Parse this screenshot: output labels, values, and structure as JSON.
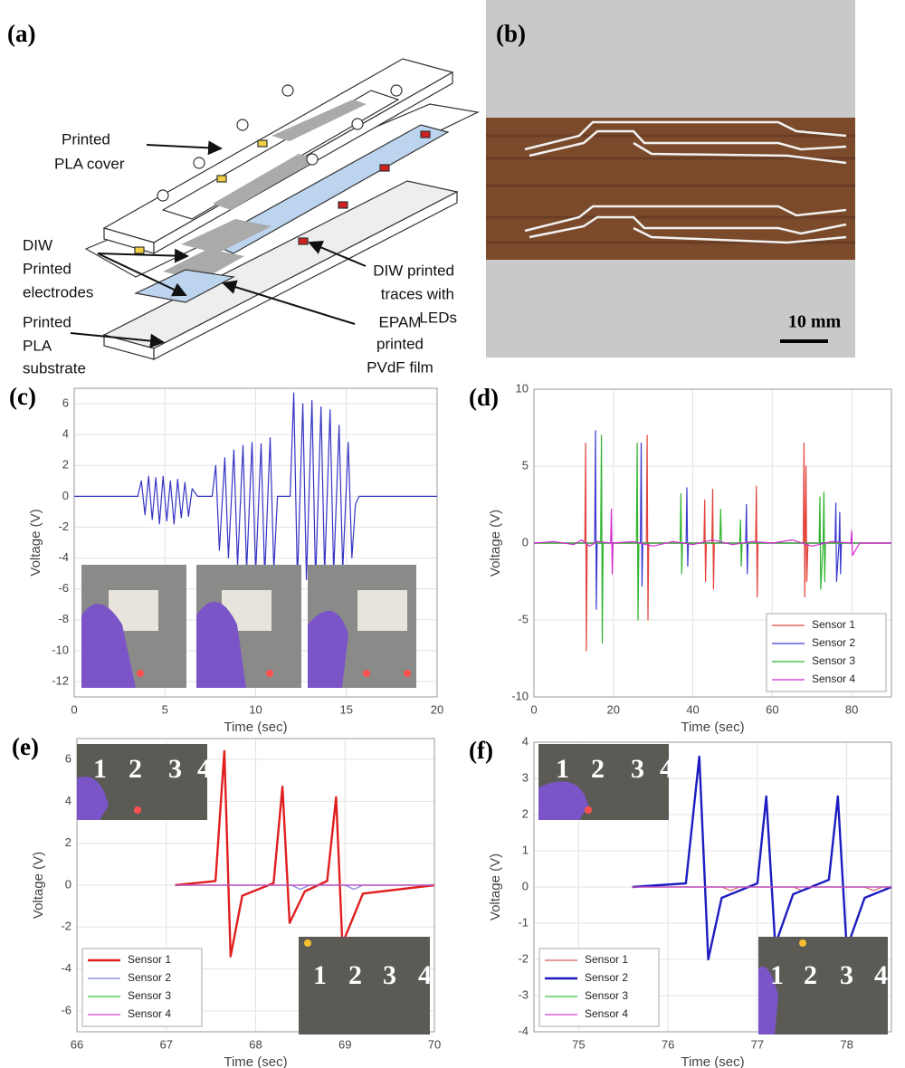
{
  "diagram": {
    "panel": "(a)",
    "labels": [
      {
        "lines": [
          "Printed",
          "PLA cover"
        ]
      },
      {
        "lines": [
          "DIW",
          "Printed",
          "electrodes"
        ]
      },
      {
        "lines": [
          "Printed",
          "PLA",
          "substrate"
        ]
      },
      {
        "lines": [
          "DIW printed",
          "traces with",
          "LEDs"
        ]
      },
      {
        "lines": [
          "EPAM",
          "printed",
          "PVdF film"
        ]
      }
    ]
  },
  "photo": {
    "panel": "(b)",
    "scale_bar": "10 mm"
  },
  "chart_data": [
    {
      "type": "line",
      "panel": "(c)",
      "xlabel": "Time (sec)",
      "ylabel": "Voltage (V)",
      "color": "#3434c4",
      "x": [
        0,
        3.5,
        3.7,
        3.9,
        4.1,
        4.3,
        4.5,
        4.7,
        4.9,
        5.1,
        5.3,
        5.5,
        5.7,
        5.9,
        6.1,
        6.3,
        6.5,
        6.8,
        7.6,
        7.8,
        8.0,
        8.3,
        8.5,
        8.8,
        9.0,
        9.3,
        9.5,
        9.8,
        10.0,
        10.3,
        10.5,
        10.8,
        11.0,
        11.2,
        11.9,
        12.1,
        12.3,
        12.6,
        12.8,
        13.1,
        13.3,
        13.6,
        13.8,
        14.1,
        14.3,
        14.6,
        14.8,
        15.1,
        15.3,
        15.5,
        15.7,
        20
      ],
      "values": [
        0,
        0,
        1.0,
        -1.2,
        1.3,
        -1.5,
        1.2,
        -1.8,
        1.3,
        -1.6,
        1.0,
        -1.8,
        1.1,
        -1.4,
        0.9,
        -1.3,
        0.5,
        0,
        0,
        2.0,
        -3.5,
        2.5,
        -4.0,
        3.0,
        -4.5,
        3.3,
        -4.8,
        3.5,
        -5.0,
        3.4,
        -5.2,
        3.8,
        -4.8,
        0,
        0,
        6.7,
        -5.5,
        6.0,
        -5.4,
        6.2,
        -5.5,
        5.8,
        -5.0,
        5.6,
        -5.0,
        4.6,
        -4.8,
        3.5,
        -4.0,
        -0.5,
        0,
        0
      ],
      "xlim": [
        0,
        20
      ],
      "xticks": [
        0,
        5,
        10,
        15,
        20
      ],
      "ylim": [
        -13,
        7
      ],
      "yticks": [
        -12,
        -10,
        -8,
        -6,
        -4,
        -2,
        0,
        2,
        4,
        6
      ],
      "grid": true
    },
    {
      "type": "line",
      "panel": "(d)",
      "xlabel": "Time (sec)",
      "ylabel": "Voltage (V)",
      "legend": "lower right",
      "series": [
        {
          "name": "Sensor 1",
          "color": "#e2443c",
          "x": [
            0,
            12.8,
            13,
            13.2,
            13.4,
            28.3,
            28.5,
            28.7,
            28.9,
            42.8,
            43,
            43.2,
            43.4,
            44.8,
            45,
            45.2,
            45.4,
            55.8,
            56,
            56.2,
            56.4,
            67.8,
            68,
            68.2,
            68.5,
            68.7,
            69,
            90
          ],
          "values": [
            0,
            0,
            6.5,
            -7,
            0,
            0,
            7,
            -5,
            0,
            0,
            2.8,
            -2.5,
            0,
            0,
            3.5,
            -3,
            0,
            0,
            3.7,
            -3.5,
            0,
            0,
            6.5,
            -3.5,
            5,
            -2.5,
            0,
            0
          ]
        },
        {
          "name": "Sensor 2",
          "color": "#3a3ad0",
          "x": [
            0,
            15.3,
            15.5,
            15.7,
            15.9,
            26.8,
            27,
            27.2,
            27.4,
            38.3,
            38.5,
            38.7,
            38.9,
            53.3,
            53.5,
            53.7,
            53.9,
            75.8,
            76,
            76.2,
            76.8,
            77,
            77.2,
            77.4,
            90
          ],
          "values": [
            0,
            0,
            7.3,
            -4.3,
            0,
            0,
            6.5,
            -2.8,
            0,
            0,
            3.6,
            -1.5,
            0,
            0,
            2.5,
            -2,
            0,
            0,
            2.6,
            -2.5,
            0,
            2,
            -2,
            0,
            0
          ]
        },
        {
          "name": "Sensor 3",
          "color": "#2fb52f",
          "x": [
            0,
            16.8,
            17,
            17.2,
            17.4,
            25.8,
            26,
            26.2,
            26.4,
            36.8,
            37,
            37.2,
            37.4,
            46.8,
            47,
            47.2,
            51.8,
            52,
            52.2,
            52.4,
            71.8,
            72,
            72.2,
            72.8,
            73,
            73.2,
            73.4,
            90
          ],
          "values": [
            0,
            0,
            7,
            -6.5,
            0,
            0,
            6.5,
            -5,
            0,
            0,
            3.2,
            -2,
            0,
            0,
            2.2,
            0,
            0,
            1.5,
            -1.5,
            0,
            0,
            3,
            -3,
            0,
            3.3,
            -2.5,
            0,
            0
          ]
        },
        {
          "name": "Sensor 4",
          "color": "#d42ad4",
          "x": [
            0,
            5,
            10,
            12,
            14,
            16,
            19.3,
            19.5,
            19.7,
            19.9,
            25,
            30,
            35,
            40,
            45,
            50,
            55,
            60,
            65,
            70,
            75,
            79.8,
            80,
            80.2,
            82,
            90
          ],
          "values": [
            0,
            0.1,
            -0.1,
            0.2,
            -0.2,
            0.1,
            0,
            2.2,
            -2,
            0,
            0.1,
            -0.2,
            0.1,
            -0.1,
            0.2,
            -0.1,
            0.1,
            0,
            0.2,
            -0.2,
            0.1,
            0,
            0.8,
            -0.8,
            0,
            0
          ]
        }
      ],
      "xlim": [
        0,
        90
      ],
      "xticks": [
        0,
        20,
        40,
        60,
        80
      ],
      "ylim": [
        -10,
        10
      ],
      "yticks": [
        -10,
        -5,
        0,
        5,
        10
      ],
      "grid": true
    },
    {
      "type": "line",
      "panel": "(e)",
      "xlabel": "Time (sec)",
      "ylabel": "Voltage (V)",
      "legend": "lower left",
      "insets": [
        {
          "labels": [
            "1",
            "2",
            "3",
            "4"
          ]
        },
        {
          "labels": [
            "1",
            "2",
            "3",
            "4"
          ]
        }
      ],
      "series": [
        {
          "name": "Sensor 1",
          "color": "#e01e1e",
          "linewidth": 2.4,
          "x": [
            67.1,
            67.55,
            67.65,
            67.72,
            67.85,
            68.2,
            68.3,
            68.38,
            68.55,
            68.8,
            68.9,
            68.97,
            69.2,
            70
          ],
          "values": [
            0,
            0.2,
            6.4,
            -3.4,
            -0.5,
            0.1,
            4.7,
            -1.8,
            -0.3,
            0.2,
            4.2,
            -2.8,
            -0.4,
            0
          ]
        },
        {
          "name": "Sensor 2",
          "color": "#7a7ae0",
          "linewidth": 1.2,
          "x": [
            67.1,
            68.4,
            68.5,
            68.6,
            69,
            69.1,
            69.2,
            70
          ],
          "values": [
            0,
            0,
            -0.2,
            0,
            0,
            -0.2,
            0,
            0
          ]
        },
        {
          "name": "Sensor 3",
          "color": "#3cc03c",
          "linewidth": 1.2,
          "x": [
            67.1,
            70
          ],
          "values": [
            0,
            0
          ]
        },
        {
          "name": "Sensor 4",
          "color": "#d040d0",
          "linewidth": 1.2,
          "x": [
            67.1,
            70
          ],
          "values": [
            0,
            0
          ]
        }
      ],
      "xlim": [
        66,
        70
      ],
      "xticks": [
        66,
        67,
        68,
        69,
        70
      ],
      "ylim": [
        -7,
        7
      ],
      "yticks": [
        -6,
        -4,
        -2,
        0,
        2,
        4,
        6
      ],
      "grid": true
    },
    {
      "type": "line",
      "panel": "(f)",
      "xlabel": "Time (sec)",
      "ylabel": "Voltage (V)",
      "legend": "lower left",
      "insets": [
        {
          "labels": [
            "1",
            "2",
            "3",
            "4"
          ]
        },
        {
          "labels": [
            "1",
            "2",
            "3",
            "4"
          ]
        }
      ],
      "series": [
        {
          "name": "Sensor 1",
          "color": "#d06060",
          "linewidth": 1.2,
          "x": [
            75.6,
            76.6,
            76.7,
            76.8,
            77.4,
            77.5,
            77.6,
            78.2,
            78.3,
            78.4,
            78.5
          ],
          "values": [
            0,
            0,
            -0.1,
            0,
            0,
            -0.1,
            0,
            0,
            -0.1,
            0,
            0
          ]
        },
        {
          "name": "Sensor 2",
          "color": "#1c1cc0",
          "linewidth": 2.4,
          "x": [
            75.6,
            76.2,
            76.35,
            76.45,
            76.6,
            77.0,
            77.1,
            77.2,
            77.4,
            77.8,
            77.9,
            78.0,
            78.2,
            78.5
          ],
          "values": [
            0,
            0.1,
            3.6,
            -2.0,
            -0.3,
            0.1,
            2.5,
            -1.6,
            -0.2,
            0.2,
            2.5,
            -1.7,
            -0.3,
            0
          ]
        },
        {
          "name": "Sensor 3",
          "color": "#3cc03c",
          "linewidth": 1.2,
          "x": [
            75.6,
            78.5
          ],
          "values": [
            0,
            0
          ]
        },
        {
          "name": "Sensor 4",
          "color": "#d040d0",
          "linewidth": 1.2,
          "x": [
            75.6,
            78.5
          ],
          "values": [
            0,
            0
          ]
        }
      ],
      "xlim": [
        74.5,
        78.5
      ],
      "xticks": [
        75,
        76,
        77,
        78
      ],
      "ylim": [
        -4,
        4
      ],
      "yticks": [
        -4,
        -3,
        -2,
        -1,
        0,
        1,
        2,
        3,
        4
      ],
      "grid": true
    }
  ]
}
